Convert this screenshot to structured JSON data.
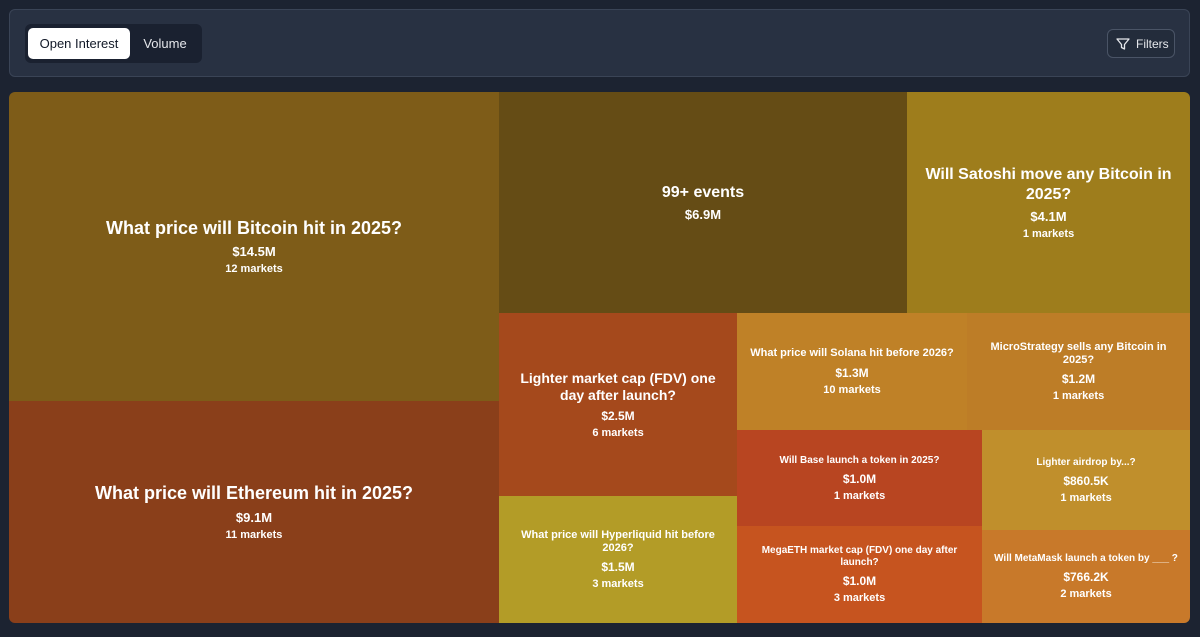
{
  "toolbar": {
    "tabs": [
      {
        "label": "Open Interest",
        "active": true
      },
      {
        "label": "Volume",
        "active": false
      }
    ],
    "filters_label": "Filters",
    "filters_icon": "funnel-icon"
  },
  "treemap": {
    "cells": [
      {
        "title": "What price will Bitcoin hit in 2025?",
        "value": "$14.5M",
        "markets": "12 markets",
        "color": "#7e5c18"
      },
      {
        "title": "What price will Ethereum hit in 2025?",
        "value": "$9.1M",
        "markets": "11 markets",
        "color": "#8a3f1a"
      },
      {
        "title": "99+ events",
        "value": "$6.9M",
        "markets": "",
        "color": "#654c15"
      },
      {
        "title": "Will Satoshi move any Bitcoin in 2025?",
        "value": "$4.1M",
        "markets": "1 markets",
        "color": "#9e7d1c"
      },
      {
        "title": "Lighter market cap (FDV) one day after launch?",
        "value": "$2.5M",
        "markets": "6 markets",
        "color": "#a5491c"
      },
      {
        "title": "What price will Hyperliquid hit before 2026?",
        "value": "$1.5M",
        "markets": "3 markets",
        "color": "#b39c27"
      },
      {
        "title": "What price will Solana hit before 2026?",
        "value": "$1.3M",
        "markets": "10 markets",
        "color": "#bf8127"
      },
      {
        "title": "MicroStrategy sells any Bitcoin in 2025?",
        "value": "$1.2M",
        "markets": "1 markets",
        "color": "#bd7d27"
      },
      {
        "title": "Will Base launch a token in 2025?",
        "value": "$1.0M",
        "markets": "1 markets",
        "color": "#b84521"
      },
      {
        "title": "Lighter airdrop by...?",
        "value": "$860.5K",
        "markets": "1 markets",
        "color": "#c08f2c"
      },
      {
        "title": "MegaETH market cap (FDV) one day after launch?",
        "value": "$1.0M",
        "markets": "3 markets",
        "color": "#c6541f"
      },
      {
        "title": "Will MetaMask launch a token by ___ ?",
        "value": "$766.2K",
        "markets": "2 markets",
        "color": "#c8792a"
      }
    ]
  }
}
